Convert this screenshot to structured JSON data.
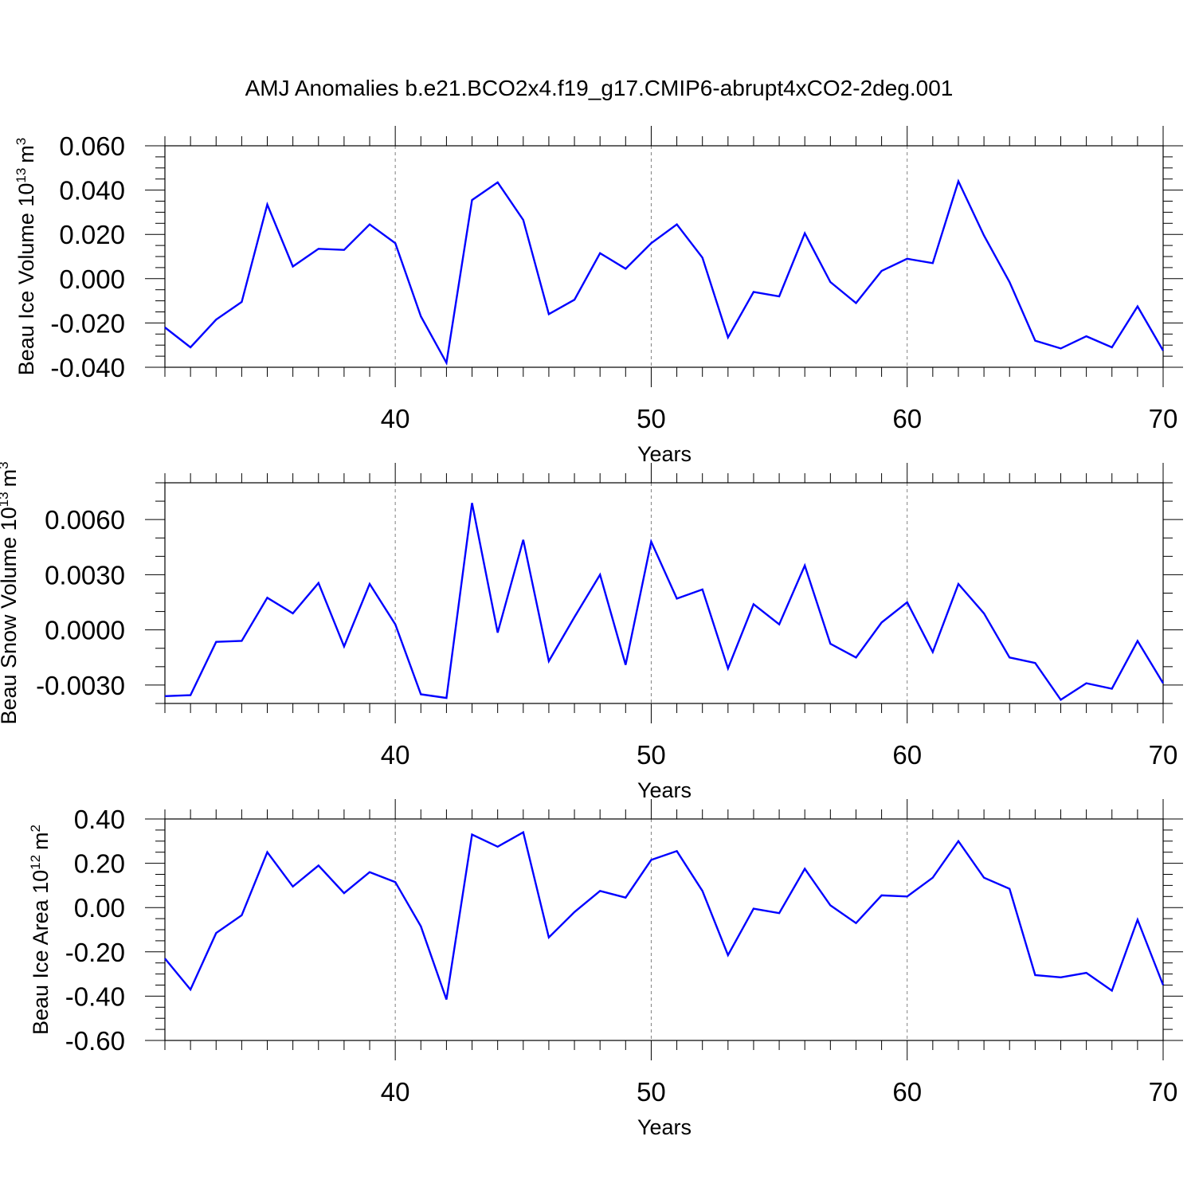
{
  "title": "AMJ Anomalies b.e21.BCO2x4.f19_g17.CMIP6-abrupt4xCO2-2deg.001",
  "colors": {
    "line": "#0000ff",
    "grid": "#808080",
    "axis": "#000000"
  },
  "chart_data": [
    {
      "type": "line",
      "ylabel_main": "Beau Ice Volume 10",
      "ylabel_exp": "13",
      "ylabel_unit": "m",
      "ylabel_unit_exp": "3",
      "xlabel": "Years",
      "xlim": [
        31,
        70
      ],
      "ylim": [
        -0.04,
        0.06
      ],
      "yticks": [
        -0.04,
        -0.02,
        0.0,
        0.02,
        0.04,
        0.06
      ],
      "ytick_labels": [
        "-0.040",
        "-0.020",
        "0.000",
        "0.020",
        "0.040",
        "0.060"
      ],
      "yminor_step": 0.005,
      "xticks": [
        40,
        50,
        60,
        70
      ],
      "xtick_labels": [
        "40",
        "50",
        "60",
        "70"
      ],
      "grid_x": [
        40,
        50,
        60
      ],
      "x": [
        31,
        32,
        33,
        34,
        35,
        36,
        37,
        38,
        39,
        40,
        41,
        42,
        43,
        44,
        45,
        46,
        47,
        48,
        49,
        50,
        51,
        52,
        53,
        54,
        55,
        56,
        57,
        58,
        59,
        60,
        61,
        62,
        63,
        64,
        65,
        66,
        67,
        68,
        69,
        70
      ],
      "values": [
        -0.022,
        -0.031,
        -0.0185,
        -0.0105,
        0.0335,
        0.0055,
        0.0135,
        0.013,
        0.0245,
        0.016,
        -0.017,
        -0.038,
        0.0355,
        0.0435,
        0.0265,
        -0.016,
        -0.0095,
        0.0115,
        0.0045,
        0.016,
        0.0245,
        0.0095,
        -0.0265,
        -0.006,
        -0.008,
        0.0205,
        -0.0015,
        -0.011,
        0.0035,
        0.009,
        0.007,
        0.044,
        0.0195,
        -0.0015,
        -0.028,
        -0.0315,
        -0.026,
        -0.031,
        -0.0125,
        -0.0325
      ]
    },
    {
      "type": "line",
      "ylabel_main": "Beau Snow Volume 10",
      "ylabel_exp": "13",
      "ylabel_unit": "m",
      "ylabel_unit_exp": "3",
      "xlabel": "Years",
      "xlim": [
        31,
        70
      ],
      "ylim": [
        -0.004,
        0.008
      ],
      "yticks": [
        -0.003,
        0.0,
        0.003,
        0.006
      ],
      "ytick_labels": [
        "-0.0030",
        "0.0000",
        "0.0030",
        "0.0060"
      ],
      "yminor_step": 0.001,
      "xticks": [
        40,
        50,
        60,
        70
      ],
      "xtick_labels": [
        "40",
        "50",
        "60",
        "70"
      ],
      "grid_x": [
        40,
        50,
        60
      ],
      "x": [
        31,
        32,
        33,
        34,
        35,
        36,
        37,
        38,
        39,
        40,
        41,
        42,
        43,
        44,
        45,
        46,
        47,
        48,
        49,
        50,
        51,
        52,
        53,
        54,
        55,
        56,
        57,
        58,
        59,
        60,
        61,
        62,
        63,
        64,
        65,
        66,
        67,
        68,
        69,
        70
      ],
      "values": [
        -0.0036,
        -0.00355,
        -0.00065,
        -0.0006,
        0.00175,
        0.0009,
        0.00255,
        -0.0009,
        0.0025,
        0.0003,
        -0.0035,
        -0.0037,
        0.0069,
        -0.00015,
        0.0049,
        -0.0017,
        0.0007,
        0.003,
        -0.0019,
        0.0048,
        0.0017,
        0.0022,
        -0.0021,
        0.0014,
        0.0003,
        0.0035,
        -0.00075,
        -0.0015,
        0.0004,
        0.0015,
        -0.0012,
        0.0025,
        0.0009,
        -0.0015,
        -0.0018,
        -0.0038,
        -0.0029,
        -0.0032,
        -0.0006,
        -0.0029
      ]
    },
    {
      "type": "line",
      "ylabel_main": "Beau Ice Area 10",
      "ylabel_exp": "12",
      "ylabel_unit": "m",
      "ylabel_unit_exp": "2",
      "xlabel": "Years",
      "xlim": [
        31,
        70
      ],
      "ylim": [
        -0.6,
        0.4
      ],
      "yticks": [
        -0.6,
        -0.4,
        -0.2,
        0.0,
        0.2,
        0.4
      ],
      "ytick_labels": [
        "-0.60",
        "-0.40",
        "-0.20",
        "0.00",
        "0.20",
        "0.40"
      ],
      "yminor_step": 0.05,
      "xticks": [
        40,
        50,
        60,
        70
      ],
      "xtick_labels": [
        "40",
        "50",
        "60",
        "70"
      ],
      "grid_x": [
        40,
        50,
        60
      ],
      "x": [
        31,
        32,
        33,
        34,
        35,
        36,
        37,
        38,
        39,
        40,
        41,
        42,
        43,
        44,
        45,
        46,
        47,
        48,
        49,
        50,
        51,
        52,
        53,
        54,
        55,
        56,
        57,
        58,
        59,
        60,
        61,
        62,
        63,
        64,
        65,
        66,
        67,
        68,
        69,
        70
      ],
      "values": [
        -0.23,
        -0.37,
        -0.115,
        -0.035,
        0.25,
        0.095,
        0.19,
        0.065,
        0.16,
        0.115,
        -0.085,
        -0.415,
        0.33,
        0.275,
        0.34,
        -0.135,
        -0.02,
        0.075,
        0.045,
        0.215,
        0.255,
        0.075,
        -0.215,
        -0.005,
        -0.025,
        0.175,
        0.01,
        -0.07,
        0.055,
        0.05,
        0.135,
        0.3,
        0.135,
        0.085,
        -0.305,
        -0.315,
        -0.295,
        -0.375,
        -0.055,
        -0.35
      ]
    }
  ]
}
